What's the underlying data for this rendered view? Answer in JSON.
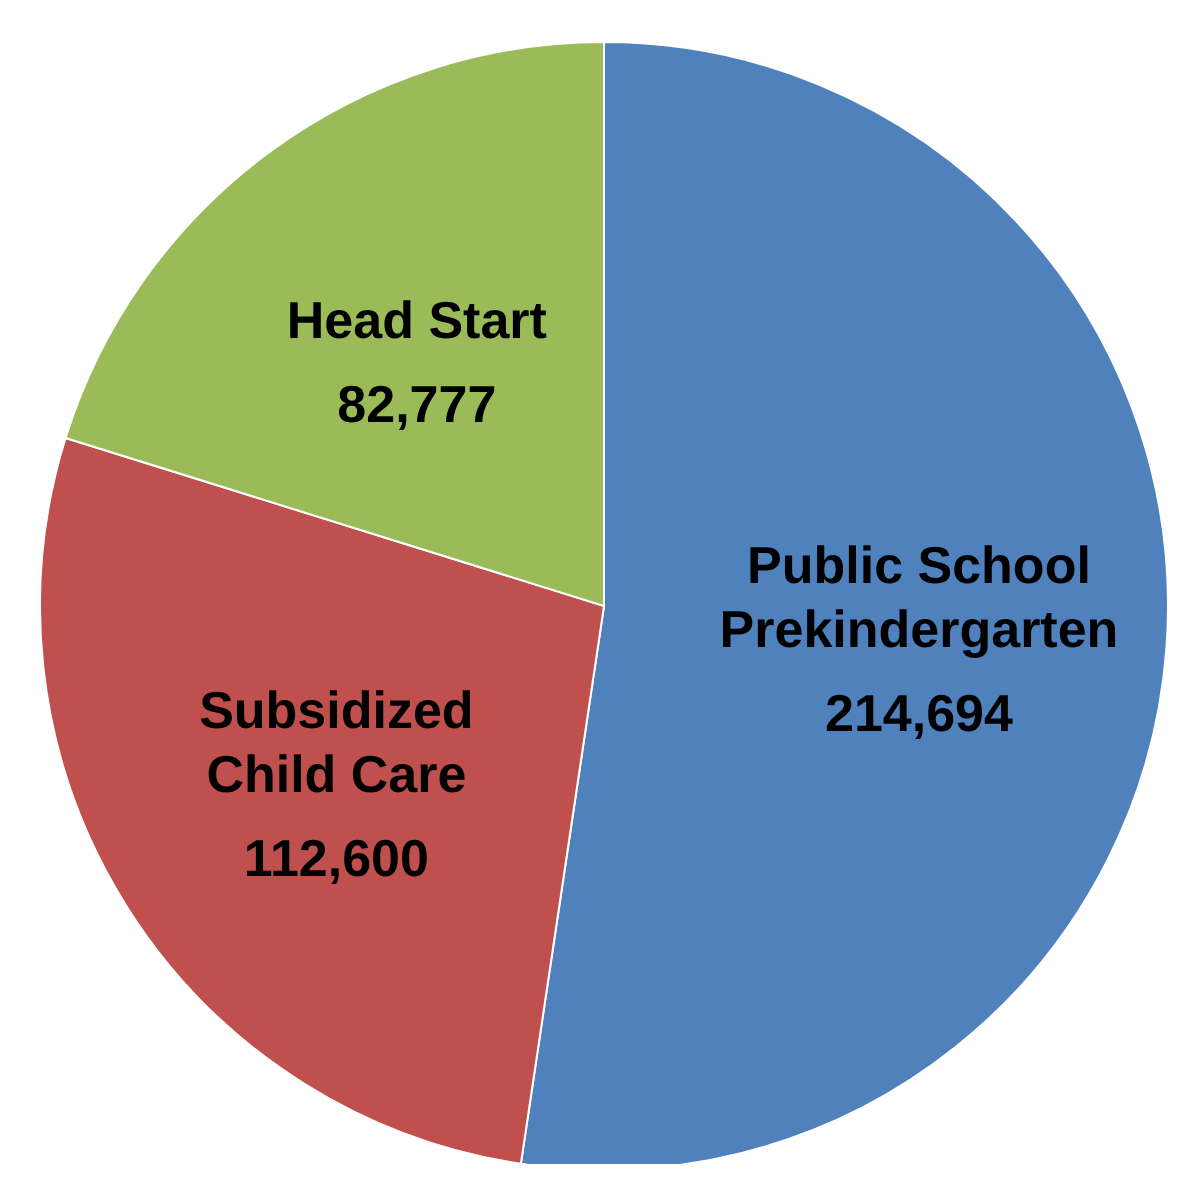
{
  "chart_data": {
    "type": "pie",
    "categories": [
      "Public School Prekindergarten",
      "Subsidized Child Care",
      "Head Start"
    ],
    "values": [
      214694,
      112600,
      82777
    ],
    "colors": [
      "#4f81bd",
      "#c0504d",
      "#9bbb59"
    ],
    "value_labels": [
      "214,694",
      "112,600",
      "82,777"
    ]
  }
}
